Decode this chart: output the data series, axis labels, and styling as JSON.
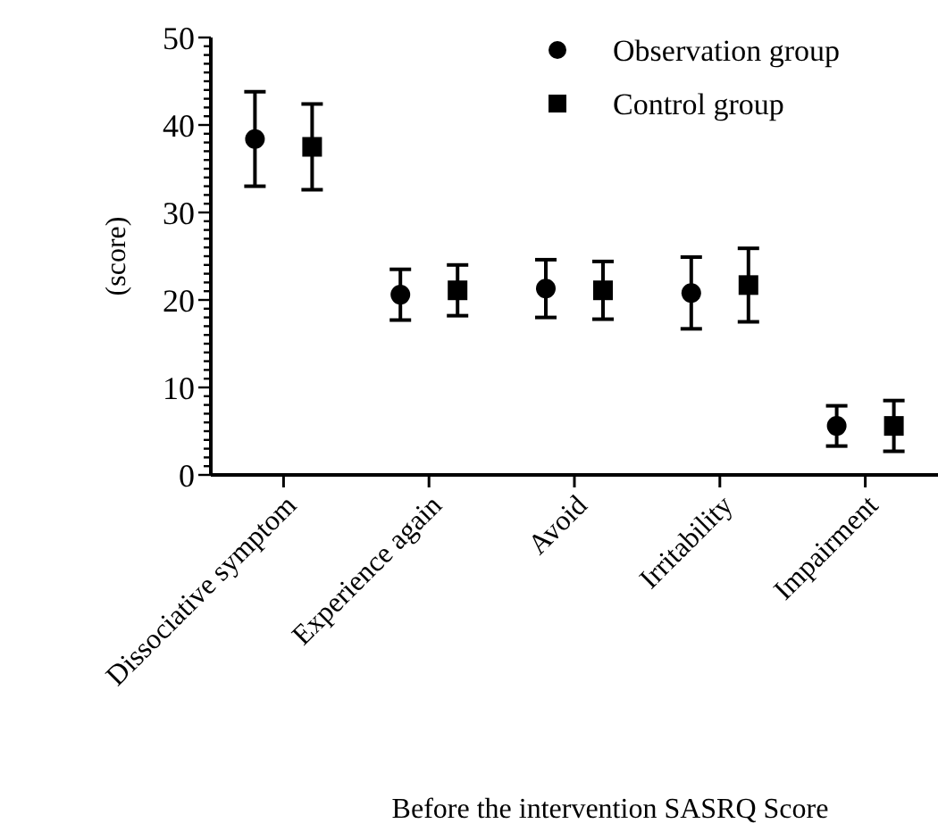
{
  "chart_data": {
    "type": "scatter",
    "xlabel": "Before the intervention SASRQ Score",
    "ylabel": "(score)",
    "categories": [
      "Dissociative symptom",
      "Experience again",
      "Avoid",
      "Irritability",
      "Impairment"
    ],
    "ylim": [
      0,
      50
    ],
    "yticks": [
      0,
      {
        "value": 1,
        "label": null
      },
      {
        "value": 2,
        "label": null
      },
      {
        "value": 3,
        "label": null
      },
      {
        "value": 4,
        "label": null
      },
      {
        "value": 5,
        "label": null
      },
      {
        "value": 6,
        "label": null
      },
      {
        "value": 7,
        "label": null
      },
      {
        "value": 8,
        "label": null
      },
      {
        "value": 9,
        "label": null
      },
      10,
      {
        "value": 11,
        "label": null
      },
      {
        "value": 12,
        "label": null
      },
      {
        "value": 13,
        "label": null
      },
      {
        "value": 14,
        "label": null
      },
      {
        "value": 15,
        "label": null
      },
      {
        "value": 16,
        "label": null
      },
      {
        "value": 17,
        "label": null
      },
      {
        "value": 18,
        "label": null
      },
      {
        "value": 19,
        "label": null
      },
      20,
      {
        "value": 21,
        "label": null
      },
      {
        "value": 22,
        "label": null
      },
      {
        "value": 23,
        "label": null
      },
      {
        "value": 24,
        "label": null
      },
      {
        "value": 25,
        "label": null
      },
      {
        "value": 26,
        "label": null
      },
      {
        "value": 27,
        "label": null
      },
      {
        "value": 28,
        "label": null
      },
      {
        "value": 29,
        "label": null
      },
      30,
      {
        "value": 31,
        "label": null
      },
      {
        "value": 32,
        "label": null
      },
      {
        "value": 33,
        "label": null
      },
      {
        "value": 34,
        "label": null
      },
      {
        "value": 35,
        "label": null
      },
      {
        "value": 36,
        "label": null
      },
      {
        "value": 37,
        "label": null
      },
      {
        "value": 38,
        "label": null
      },
      {
        "value": 39,
        "label": null
      },
      40,
      {
        "value": 41,
        "label": null
      },
      {
        "value": 42,
        "label": null
      },
      {
        "value": 43,
        "label": null
      },
      {
        "value": 44,
        "label": null
      },
      {
        "value": 45,
        "label": null
      },
      {
        "value": 46,
        "label": null
      },
      {
        "value": 47,
        "label": null
      },
      {
        "value": 48,
        "label": null
      },
      {
        "value": 49,
        "label": null
      },
      50
    ],
    "grid": false,
    "legend": "top right",
    "series": [
      {
        "name": "Observation group",
        "color": "#000000",
        "marker": "circle",
        "values": [
          38.4,
          20.6,
          21.3,
          20.8,
          5.6
        ],
        "errors": [
          5.4,
          2.9,
          3.3,
          4.1,
          2.3
        ]
      },
      {
        "name": "Control group",
        "color": "#000000",
        "marker": "square",
        "values": [
          37.5,
          21.1,
          21.1,
          21.7,
          5.6
        ],
        "errors": [
          4.9,
          2.9,
          3.3,
          4.2,
          2.9
        ]
      }
    ]
  }
}
